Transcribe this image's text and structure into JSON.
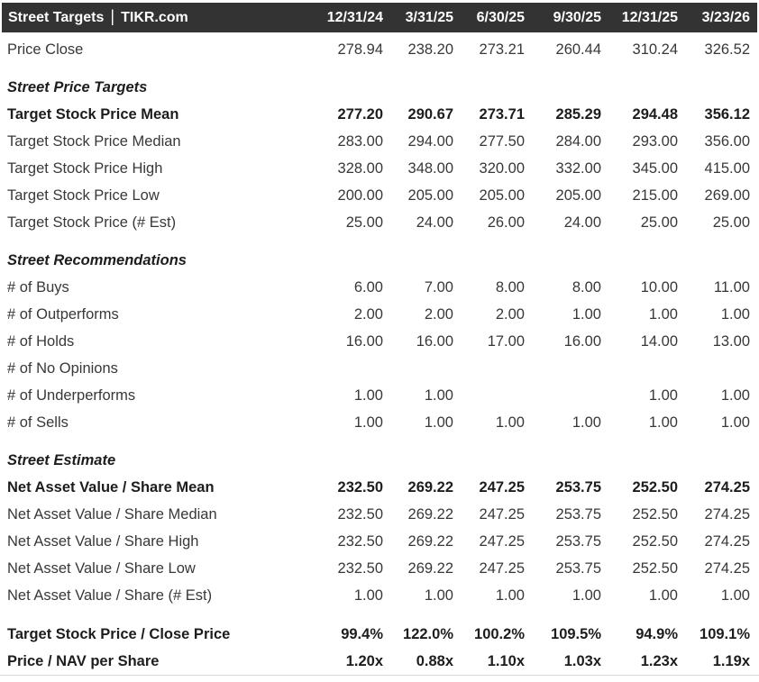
{
  "header": {
    "title": "Street Targets",
    "separator": "|",
    "source": "TIKR.com",
    "columns": [
      "12/31/24",
      "3/31/25",
      "6/30/25",
      "9/30/25",
      "12/31/25",
      "3/23/26"
    ]
  },
  "colors": {
    "header_bg": "#333333",
    "header_text": "#ffffff",
    "text": "#383838",
    "bold_text": "#1d1d1d",
    "rule": "#d9d9d9",
    "background": "#ffffff"
  },
  "table": {
    "sections": [
      {
        "title": null,
        "rows": [
          {
            "label": "Price Close",
            "bold": false,
            "values": [
              "278.94",
              "238.20",
              "273.21",
              "260.44",
              "310.24",
              "326.52"
            ]
          }
        ]
      },
      {
        "title": "Street Price Targets",
        "rows": [
          {
            "label": "Target Stock Price Mean",
            "bold": true,
            "values": [
              "277.20",
              "290.67",
              "273.71",
              "285.29",
              "294.48",
              "356.12"
            ]
          },
          {
            "label": "Target Stock Price Median",
            "bold": false,
            "values": [
              "283.00",
              "294.00",
              "277.50",
              "284.00",
              "293.00",
              "356.00"
            ]
          },
          {
            "label": "Target Stock Price High",
            "bold": false,
            "values": [
              "328.00",
              "348.00",
              "320.00",
              "332.00",
              "345.00",
              "415.00"
            ]
          },
          {
            "label": "Target Stock Price Low",
            "bold": false,
            "values": [
              "200.00",
              "205.00",
              "205.00",
              "205.00",
              "215.00",
              "269.00"
            ]
          },
          {
            "label": "Target Stock Price (# Est)",
            "bold": false,
            "values": [
              "25.00",
              "24.00",
              "26.00",
              "24.00",
              "25.00",
              "25.00"
            ]
          }
        ]
      },
      {
        "title": "Street Recommendations",
        "rows": [
          {
            "label": "# of Buys",
            "bold": false,
            "values": [
              "6.00",
              "7.00",
              "8.00",
              "8.00",
              "10.00",
              "11.00"
            ]
          },
          {
            "label": "# of Outperforms",
            "bold": false,
            "values": [
              "2.00",
              "2.00",
              "2.00",
              "1.00",
              "1.00",
              "1.00"
            ]
          },
          {
            "label": "# of Holds",
            "bold": false,
            "values": [
              "16.00",
              "16.00",
              "17.00",
              "16.00",
              "14.00",
              "13.00"
            ]
          },
          {
            "label": "# of No Opinions",
            "bold": false,
            "values": [
              "",
              "",
              "",
              "",
              "",
              ""
            ]
          },
          {
            "label": "# of Underperforms",
            "bold": false,
            "values": [
              "1.00",
              "1.00",
              "",
              "",
              "1.00",
              "1.00"
            ]
          },
          {
            "label": "# of Sells",
            "bold": false,
            "values": [
              "1.00",
              "1.00",
              "1.00",
              "1.00",
              "1.00",
              "1.00"
            ]
          }
        ]
      },
      {
        "title": "Street Estimate",
        "rows": [
          {
            "label": "Net Asset Value / Share Mean",
            "bold": true,
            "values": [
              "232.50",
              "269.22",
              "247.25",
              "253.75",
              "252.50",
              "274.25"
            ]
          },
          {
            "label": "Net Asset Value / Share Median",
            "bold": false,
            "values": [
              "232.50",
              "269.22",
              "247.25",
              "253.75",
              "252.50",
              "274.25"
            ]
          },
          {
            "label": "Net Asset Value / Share High",
            "bold": false,
            "values": [
              "232.50",
              "269.22",
              "247.25",
              "253.75",
              "252.50",
              "274.25"
            ]
          },
          {
            "label": "Net Asset Value / Share Low",
            "bold": false,
            "values": [
              "232.50",
              "269.22",
              "247.25",
              "253.75",
              "252.50",
              "274.25"
            ]
          },
          {
            "label": "Net Asset Value / Share (# Est)",
            "bold": false,
            "values": [
              "1.00",
              "1.00",
              "1.00",
              "1.00",
              "1.00",
              "1.00"
            ]
          }
        ]
      },
      {
        "title": null,
        "rows": [
          {
            "label": "Target Stock Price / Close Price",
            "bold": true,
            "values": [
              "99.4%",
              "122.0%",
              "100.2%",
              "109.5%",
              "94.9%",
              "109.1%"
            ]
          },
          {
            "label": "Price / NAV per Share",
            "bold": true,
            "values": [
              "1.20x",
              "0.88x",
              "1.10x",
              "1.03x",
              "1.23x",
              "1.19x"
            ]
          }
        ]
      }
    ]
  }
}
